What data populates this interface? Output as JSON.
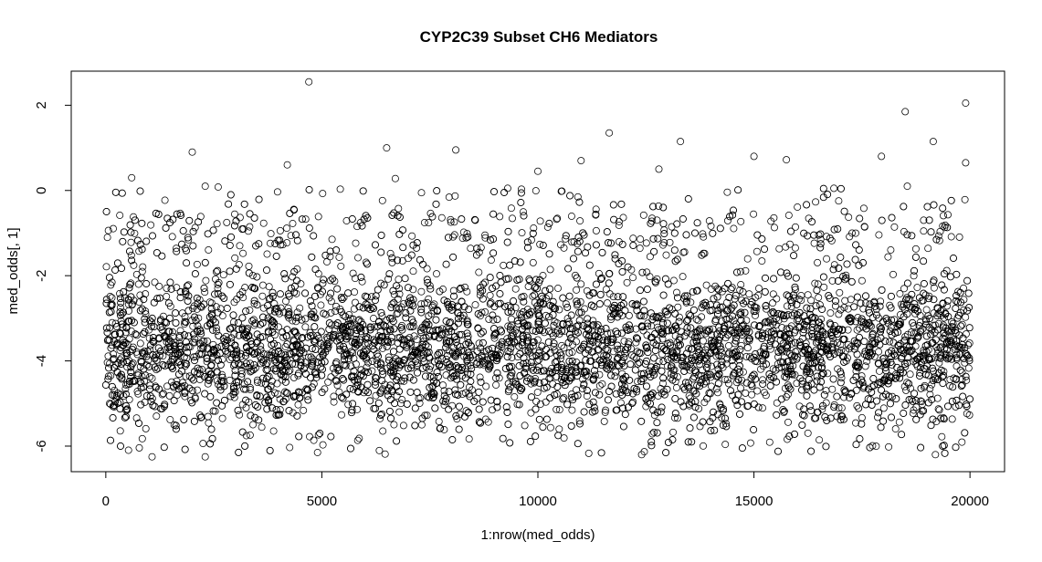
{
  "chart_data": {
    "type": "scatter",
    "title": "CYP2C39 Subset CH6 Mediators",
    "xlabel": "1:nrow(med_odds)",
    "ylabel": "med_odds[, 1]",
    "xlim": [
      -800,
      20800
    ],
    "ylim": [
      -6.6,
      2.8
    ],
    "x_ticks": [
      0,
      5000,
      10000,
      15000,
      20000
    ],
    "y_ticks": [
      -6,
      -4,
      -2,
      0,
      2
    ],
    "grid": false,
    "legend": "none",
    "marker": "open-circle",
    "colors": {
      "marker": "#000000",
      "axes": "#000000",
      "background": "#ffffff"
    },
    "n_points_approx": 20000,
    "y_bulk_range": [
      -6.2,
      -1.4
    ],
    "notable_points": [
      {
        "x": 4700,
        "y": 2.55
      },
      {
        "x": 19900,
        "y": 2.05
      },
      {
        "x": 18500,
        "y": 1.85
      },
      {
        "x": 11650,
        "y": 1.35
      },
      {
        "x": 13300,
        "y": 1.15
      },
      {
        "x": 19150,
        "y": 1.15
      },
      {
        "x": 2000,
        "y": 0.9
      },
      {
        "x": 6500,
        "y": 1.0
      },
      {
        "x": 8100,
        "y": 0.95
      },
      {
        "x": 15000,
        "y": 0.8
      },
      {
        "x": 17950,
        "y": 0.8
      },
      {
        "x": 15750,
        "y": 0.72
      },
      {
        "x": 19900,
        "y": 0.65
      },
      {
        "x": 4200,
        "y": 0.6
      },
      {
        "x": 600,
        "y": 0.3
      },
      {
        "x": 10000,
        "y": 0.45
      },
      {
        "x": 6700,
        "y": 0.28
      },
      {
        "x": 12800,
        "y": 0.5
      },
      {
        "x": 11000,
        "y": 0.7
      },
      {
        "x": 2300,
        "y": 0.1
      },
      {
        "x": 2600,
        "y": 0.08
      },
      {
        "x": 9300,
        "y": 0.05
      },
      {
        "x": 16850,
        "y": 0.05
      },
      {
        "x": 18550,
        "y": 0.1
      },
      {
        "x": 1070,
        "y": -6.25
      },
      {
        "x": 2300,
        "y": -6.25
      },
      {
        "x": 19200,
        "y": -6.2
      },
      {
        "x": 12400,
        "y": -6.2
      },
      {
        "x": 4900,
        "y": -6.15
      }
    ]
  }
}
